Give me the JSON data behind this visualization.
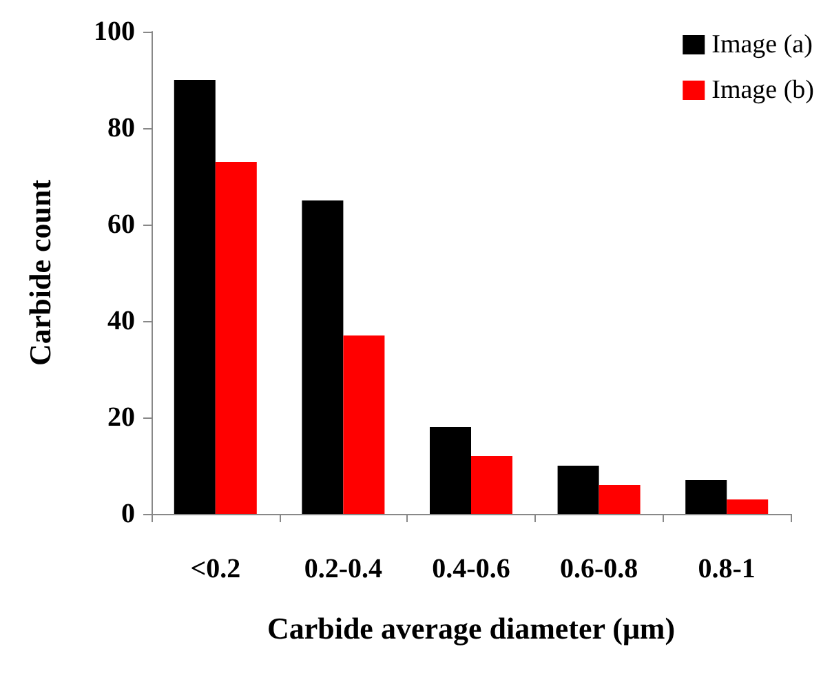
{
  "chart_data": {
    "type": "bar",
    "xlabel": "Carbide average diameter (μm)",
    "ylabel": "Carbide count",
    "categories": [
      "<0.2",
      "0.2-0.4",
      "0.4-0.6",
      "0.6-0.8",
      "0.8-1"
    ],
    "series": [
      {
        "name": "Image (a)",
        "color": "#000000",
        "values": [
          90,
          65,
          18,
          10,
          7
        ]
      },
      {
        "name": "Image (b)",
        "color": "#ff0000",
        "values": [
          73,
          37,
          12,
          6,
          3
        ]
      }
    ],
    "ylim": [
      0,
      100
    ],
    "yticks": [
      0,
      20,
      40,
      60,
      80,
      100
    ],
    "grid": false,
    "legend": "top right"
  }
}
